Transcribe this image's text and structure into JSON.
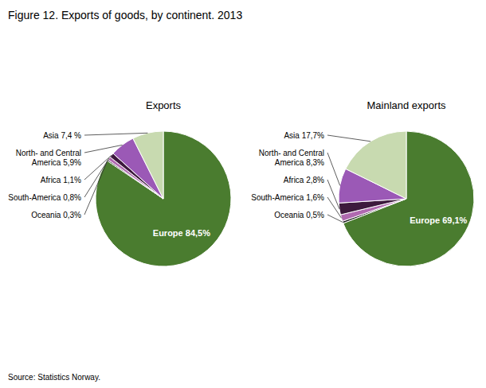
{
  "title": "Figure 12. Exports of goods, by continent. 2013",
  "annotations": [
    "Source: Statistics Norway."
  ],
  "chart_data": [
    {
      "type": "pie",
      "title": "Exports",
      "values": [
        84.5,
        0.3,
        0.8,
        1.1,
        5.9,
        7.4
      ],
      "value_labels": [
        "Europe 84,5%",
        "Oceania 0,3%",
        "South-America 0,8%",
        "Africa 1,1%",
        "North- and Central\nAmerica 5,9%",
        "Asia 7,4 %"
      ],
      "colors": [
        "#4a7c2f",
        "#1a1a1a",
        "#b06ab0",
        "#3d1a3d",
        "#9b59b6",
        "#c8dab0"
      ]
    },
    {
      "type": "pie",
      "title": "Mainland exports",
      "values": [
        69.1,
        0.5,
        1.6,
        2.8,
        8.3,
        17.7
      ],
      "value_labels": [
        "Europe 69,1%",
        "Oceania 0,5%",
        "South-America 1,6%",
        "Africa 2,8%",
        "North- and Central\nAmerica 8,3%",
        "Asia 17,7%"
      ],
      "colors": [
        "#4a7c2f",
        "#1a1a1a",
        "#b06ab0",
        "#3d1a3d",
        "#9b59b6",
        "#c8dab0"
      ]
    }
  ]
}
